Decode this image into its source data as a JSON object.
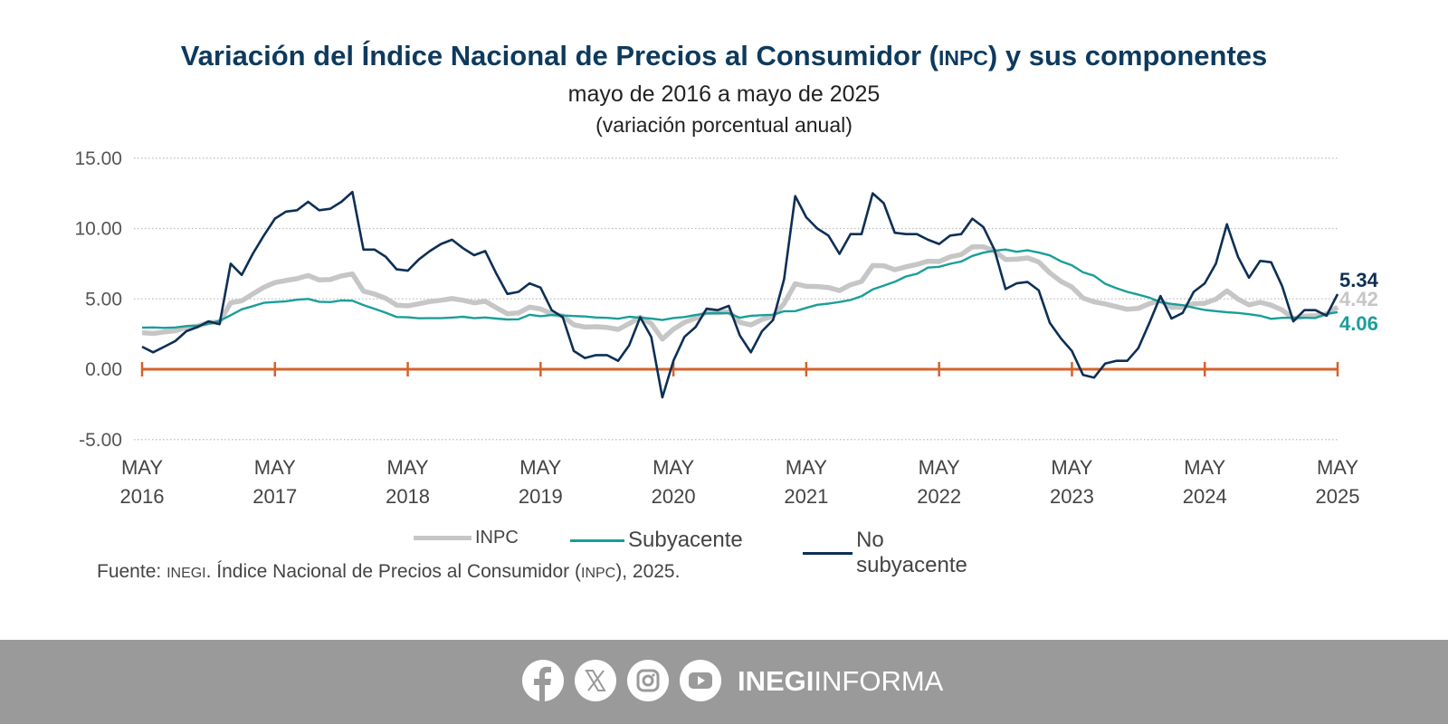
{
  "header": {
    "title_pre": "Variación del Índice Nacional de Precios al Consumidor (",
    "title_acronym": "INPC",
    "title_post": ") y sus componentes",
    "subtitle": "mayo de 2016 a mayo de 2025",
    "unit": "(variación porcentual anual)"
  },
  "chart_data": {
    "type": "line",
    "title": "Variación del Índice Nacional de Precios al Consumidor (INPC) y sus componentes",
    "ylabel": "",
    "xlabel": "",
    "ylim": [
      -5,
      15
    ],
    "yticks": [
      "15.00",
      "10.00",
      "5.00",
      "0.00",
      "-5.00"
    ],
    "ytick_values": [
      15,
      10,
      5,
      0,
      -5
    ],
    "x_frequency": "monthly",
    "x_range": [
      "MAY 2016",
      "MAY 2025"
    ],
    "xticks": [
      {
        "month": "MAY",
        "year": "2016"
      },
      {
        "month": "MAY",
        "year": "2017"
      },
      {
        "month": "MAY",
        "year": "2018"
      },
      {
        "month": "MAY",
        "year": "2019"
      },
      {
        "month": "MAY",
        "year": "2020"
      },
      {
        "month": "MAY",
        "year": "2021"
      },
      {
        "month": "MAY",
        "year": "2022"
      },
      {
        "month": "MAY",
        "year": "2023"
      },
      {
        "month": "MAY",
        "year": "2024"
      },
      {
        "month": "MAY",
        "year": "2025"
      }
    ],
    "grid": true,
    "legend_position": "bottom",
    "zero_line_color": "#d4622a",
    "series": [
      {
        "name": "INPC",
        "color": "#c6c6c6",
        "end_label": "4.42",
        "values": [
          2.6,
          2.54,
          2.65,
          2.73,
          2.97,
          3.06,
          3.31,
          3.36,
          4.72,
          4.86,
          5.35,
          5.82,
          6.16,
          6.31,
          6.44,
          6.66,
          6.35,
          6.37,
          6.63,
          6.77,
          5.55,
          5.34,
          5.04,
          4.55,
          4.51,
          4.65,
          4.81,
          4.9,
          5.02,
          4.9,
          4.72,
          4.83,
          4.37,
          3.94,
          4.0,
          4.41,
          4.28,
          3.95,
          3.78,
          3.16,
          3.0,
          3.02,
          2.97,
          2.83,
          3.24,
          3.7,
          3.25,
          2.15,
          2.84,
          3.33,
          3.62,
          4.05,
          4.01,
          4.09,
          3.33,
          3.15,
          3.54,
          3.76,
          4.67,
          6.08,
          5.89,
          5.88,
          5.81,
          5.59,
          6.0,
          6.24,
          7.37,
          7.36,
          7.07,
          7.28,
          7.45,
          7.68,
          7.65,
          7.99,
          8.15,
          8.7,
          8.7,
          8.41,
          7.8,
          7.82,
          7.91,
          7.62,
          6.85,
          6.25,
          5.84,
          5.06,
          4.79,
          4.64,
          4.45,
          4.26,
          4.32,
          4.66,
          4.88,
          4.4,
          4.42,
          4.65,
          4.69,
          4.98,
          5.57,
          4.99,
          4.58,
          4.76,
          4.55,
          4.21,
          3.59,
          3.77,
          3.8,
          3.93,
          4.42
        ]
      },
      {
        "name": "Subyacente",
        "color": "#1a9e9a",
        "end_label": "4.06",
        "values": [
          2.95,
          2.97,
          2.94,
          2.97,
          3.07,
          3.09,
          3.23,
          3.44,
          3.84,
          4.26,
          4.48,
          4.72,
          4.78,
          4.83,
          4.94,
          5.0,
          4.8,
          4.77,
          4.89,
          4.87,
          4.56,
          4.29,
          4.02,
          3.71,
          3.69,
          3.62,
          3.63,
          3.63,
          3.67,
          3.73,
          3.63,
          3.68,
          3.6,
          3.54,
          3.55,
          3.87,
          3.77,
          3.85,
          3.82,
          3.78,
          3.75,
          3.68,
          3.65,
          3.59,
          3.73,
          3.66,
          3.6,
          3.5,
          3.64,
          3.71,
          3.85,
          3.97,
          3.99,
          3.98,
          3.66,
          3.8,
          3.84,
          3.87,
          4.12,
          4.13,
          4.36,
          4.58,
          4.66,
          4.78,
          4.92,
          5.19,
          5.67,
          5.94,
          6.21,
          6.59,
          6.78,
          7.22,
          7.28,
          7.49,
          7.65,
          8.05,
          8.28,
          8.42,
          8.51,
          8.35,
          8.45,
          8.29,
          8.09,
          7.67,
          7.39,
          6.89,
          6.64,
          6.08,
          5.76,
          5.5,
          5.3,
          5.09,
          4.76,
          4.64,
          4.55,
          4.37,
          4.21,
          4.13,
          4.05,
          4.0,
          3.91,
          3.8,
          3.58,
          3.65,
          3.66,
          3.65,
          3.64,
          3.93,
          4.06
        ]
      },
      {
        "name": "No subyacente",
        "color": "#0d2f55",
        "end_label": "5.34",
        "values": [
          1.6,
          1.2,
          1.6,
          2.0,
          2.7,
          3.0,
          3.4,
          3.2,
          7.5,
          6.7,
          8.2,
          9.5,
          10.7,
          11.2,
          11.3,
          11.9,
          11.3,
          11.4,
          11.9,
          12.6,
          8.5,
          8.5,
          8.0,
          7.1,
          7.0,
          7.8,
          8.4,
          8.9,
          9.2,
          8.6,
          8.1,
          8.4,
          6.8,
          5.35,
          5.5,
          6.1,
          5.8,
          4.2,
          3.7,
          1.3,
          0.8,
          1.0,
          1.0,
          0.6,
          1.7,
          3.7,
          2.3,
          -2.0,
          0.6,
          2.3,
          3.0,
          4.3,
          4.2,
          4.5,
          2.4,
          1.2,
          2.7,
          3.5,
          6.4,
          12.3,
          10.8,
          10.0,
          9.5,
          8.2,
          9.6,
          9.6,
          12.5,
          11.8,
          9.7,
          9.6,
          9.6,
          9.2,
          8.9,
          9.5,
          9.6,
          10.7,
          10.1,
          8.5,
          5.7,
          6.1,
          6.2,
          5.6,
          3.3,
          2.2,
          1.3,
          -0.4,
          -0.6,
          0.4,
          0.6,
          0.6,
          1.5,
          3.3,
          5.2,
          3.6,
          4.0,
          5.5,
          6.1,
          7.5,
          10.3,
          8.0,
          6.5,
          7.7,
          7.6,
          5.9,
          3.4,
          4.2,
          4.2,
          3.8,
          5.34
        ]
      }
    ]
  },
  "legend": {
    "inpc": "INPC",
    "core": "Subyacente",
    "noncore": "No subyacente"
  },
  "source": {
    "prefix": "Fuente: ",
    "org": "INEGI",
    "mid": ". Índice Nacional de Precios al Consumidor (",
    "acronym": "INPC",
    "suffix": "), 2025."
  },
  "footer": {
    "icons": [
      "facebook-icon",
      "x-icon",
      "instagram-icon",
      "youtube-icon"
    ],
    "brand_bold": "INEGI",
    "brand_regular": "INFORMA",
    "background": "#9a9a9a"
  }
}
